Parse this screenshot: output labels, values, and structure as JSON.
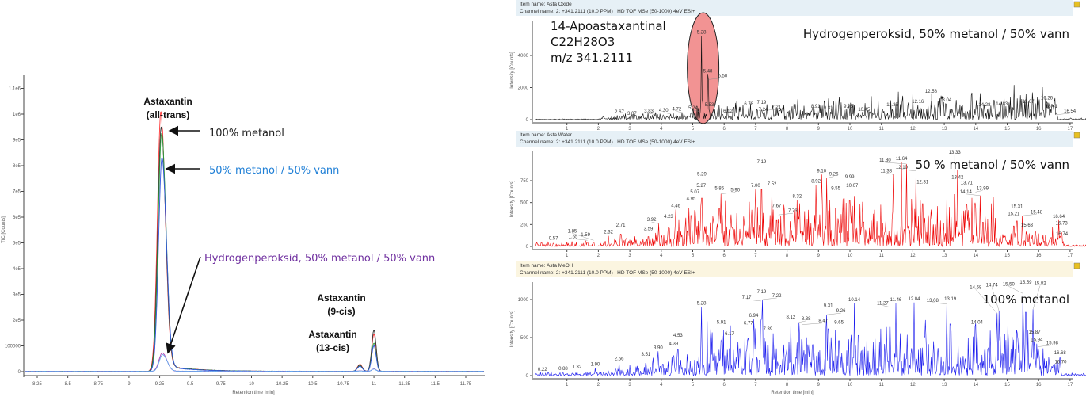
{
  "chart_data": [
    {
      "type": "line",
      "xlabel": "Retention time [min]",
      "ylabel": "TIC [Counts]",
      "xlim": [
        8.15,
        11.9
      ],
      "ylim": [
        0,
        1150000
      ],
      "xticks": [
        "8.25",
        "8.5",
        "8.75",
        "9",
        "9.25",
        "9.5",
        "9.75",
        "10",
        "10.25",
        "10.5",
        "10.75",
        "11",
        "11.25",
        "11.5",
        "11.75"
      ],
      "yticks": [
        {
          "v": 0,
          "label": "0"
        },
        {
          "v": 100000,
          "label": "100000"
        },
        {
          "v": 200000,
          "label": "2e5"
        },
        {
          "v": 300000,
          "label": "3e5"
        },
        {
          "v": 400000,
          "label": "4e5"
        },
        {
          "v": 500000,
          "label": "5e5"
        },
        {
          "v": 600000,
          "label": "6e5"
        },
        {
          "v": 700000,
          "label": "7e5"
        },
        {
          "v": 800000,
          "label": "8e5"
        },
        {
          "v": 900000,
          "label": "9e5"
        },
        {
          "v": 1000000,
          "label": "1e6"
        },
        {
          "v": 1100000,
          "label": "1.1e6"
        }
      ],
      "grid": false,
      "peaks": [
        {
          "label_line1": "Astaxantin",
          "label_line2": "(all-trans)",
          "rt": 9.26
        },
        {
          "label_line1": "Astaxantin",
          "label_line2": "(9-cis)",
          "rt": 10.88
        },
        {
          "label_line1": "Astaxantin",
          "label_line2": "(13-cis)",
          "rt": 11.0
        }
      ],
      "annotations": [
        {
          "text": "100% metanol",
          "color": "#222222"
        },
        {
          "text": "50% metanol / 50% vann",
          "color": "#1f7fd6"
        },
        {
          "text": "Hydrogenperoksid, 50% metanol / 50% vann",
          "color": "#7030a0"
        }
      ],
      "series": [
        {
          "color": "#ff3b3b",
          "peak_all_trans": 1010000,
          "peak_9_cis": 28000,
          "peak_13_cis": 145000
        },
        {
          "color": "#333333",
          "peak_all_trans": 950000,
          "peak_9_cis": 25000,
          "peak_13_cis": 160000
        },
        {
          "color": "#2e9e3e",
          "peak_all_trans": 925000,
          "peak_9_cis": 22000,
          "peak_13_cis": 110000
        },
        {
          "color": "#3355dd",
          "peak_all_trans": 830000,
          "peak_9_cis": 20000,
          "peak_13_cis": 100000
        },
        {
          "color": "#b040b0",
          "peak_all_trans": 72000,
          "peak_9_cis": 2000,
          "peak_13_cis": 10000
        },
        {
          "color": "#66aaee",
          "peak_all_trans": 65000,
          "peak_9_cis": 2000,
          "peak_13_cis": 9000
        }
      ]
    },
    {
      "type": "line",
      "item_name": "Item name: Asta Oxide",
      "channel_name": "Channel name: 2: +341.2111 (10.0 PPM) : HD TOF MSe (50-1000) 4eV ESI+",
      "ylabel": "Intensity [Counts]",
      "title": "Hydrogenperoksid, 50% metanol / 50% vann",
      "compound": [
        "14-Apoastaxantinal",
        "C22H28O3",
        "m/z 341.2111"
      ],
      "highlight_color": "#f08080",
      "color": "#111111",
      "xlim": [
        0,
        22
      ],
      "ylim": [
        0,
        5600
      ],
      "yticks": [
        0,
        2000,
        4000
      ],
      "peaks": [
        [
          2.67,
          250
        ],
        [
          3.07,
          150
        ],
        [
          3.83,
          300
        ],
        [
          4.3,
          350
        ],
        [
          4.72,
          420
        ],
        [
          5.24,
          500
        ],
        [
          5.28,
          5200
        ],
        [
          5.48,
          2800
        ],
        [
          5.5,
          2500
        ],
        [
          5.53,
          700
        ],
        [
          6.12,
          300
        ],
        [
          6.78,
          750
        ],
        [
          7.19,
          850
        ],
        [
          7.21,
          550
        ],
        [
          7.24,
          400
        ],
        [
          8.91,
          600
        ],
        [
          9.31,
          500
        ],
        [
          9.95,
          600
        ],
        [
          10.45,
          400
        ],
        [
          11.35,
          700
        ],
        [
          12.16,
          900
        ],
        [
          12.58,
          850
        ],
        [
          13.04,
          1000
        ],
        [
          14.28,
          700
        ],
        [
          14.83,
          750
        ],
        [
          15.67,
          900
        ],
        [
          16.26,
          1100
        ],
        [
          16.41,
          600
        ],
        [
          16.54,
          300
        ]
      ]
    },
    {
      "type": "line",
      "item_name": "Item name: Asta Water",
      "channel_name": "Channel name: 2: +341.2111 (10.0 PPM) : HD TOF MSe (50-1000) 4eV ESI+",
      "ylabel": "Intensity [Counts]",
      "title": "50 % metanol / 50% vann",
      "color": "#ee0000",
      "xlim": [
        0,
        22
      ],
      "ylim": [
        0,
        1000
      ],
      "yticks": [
        0,
        250,
        500,
        750
      ],
      "peaks": [
        [
          0.57,
          50
        ],
        [
          1.59,
          90
        ],
        [
          1.65,
          70
        ],
        [
          1.85,
          70
        ],
        [
          2.32,
          120
        ],
        [
          2.71,
          200
        ],
        [
          3.59,
          160
        ],
        [
          3.92,
          260
        ],
        [
          4.23,
          300
        ],
        [
          4.46,
          420
        ],
        [
          4.95,
          500
        ],
        [
          5.07,
          580
        ],
        [
          5.27,
          650
        ],
        [
          5.29,
          780
        ],
        [
          5.85,
          620
        ],
        [
          5.9,
          600
        ],
        [
          7.0,
          650
        ],
        [
          7.19,
          920
        ],
        [
          7.52,
          670
        ],
        [
          7.67,
          420
        ],
        [
          7.73,
          360
        ],
        [
          8.32,
          530
        ],
        [
          8.92,
          700
        ],
        [
          9.1,
          820
        ],
        [
          9.26,
          780
        ],
        [
          9.55,
          620
        ],
        [
          9.99,
          750
        ],
        [
          10.07,
          650
        ],
        [
          11.38,
          820
        ],
        [
          11.64,
          960
        ],
        [
          11.8,
          940
        ],
        [
          12.1,
          860
        ],
        [
          12.31,
          690
        ],
        [
          13.33,
          840
        ],
        [
          13.42,
          870
        ],
        [
          13.71,
          680
        ],
        [
          13.99,
          620
        ],
        [
          14.14,
          580
        ],
        [
          15.21,
          330
        ],
        [
          15.31,
          410
        ],
        [
          15.48,
          350
        ],
        [
          15.63,
          200
        ],
        [
          16.64,
          300
        ],
        [
          16.73,
          220
        ],
        [
          16.74,
          100
        ],
        [
          18.33,
          50
        ],
        [
          19.5,
          40
        ],
        [
          20.31,
          60
        ],
        [
          21.28,
          50
        ]
      ]
    },
    {
      "type": "line",
      "item_name": "Item name: Asta MeOH",
      "channel_name": "Channel name: 2: +341.2111 (10.0 PPM) : HD TOF MSe (50-1000) 4eV ESI+",
      "ylabel": "Intensity [Counts]",
      "xlabel": "Retention time [min]",
      "title": "100% metanol",
      "color": "#1a1aee",
      "xlim": [
        0,
        22
      ],
      "ylim": [
        0,
        1200
      ],
      "yticks": [
        0,
        500,
        1000
      ],
      "peaks": [
        [
          0.22,
          30
        ],
        [
          0.88,
          40
        ],
        [
          1.32,
          60
        ],
        [
          1.9,
          100
        ],
        [
          2.66,
          170
        ],
        [
          3.51,
          230
        ],
        [
          3.9,
          320
        ],
        [
          4.39,
          370
        ],
        [
          4.53,
          480
        ],
        [
          5.28,
          900
        ],
        [
          5.91,
          650
        ],
        [
          6.17,
          500
        ],
        [
          6.77,
          640
        ],
        [
          6.94,
          740
        ],
        [
          7.17,
          980
        ],
        [
          7.19,
          1050
        ],
        [
          7.22,
          1000
        ],
        [
          7.39,
          560
        ],
        [
          8.12,
          720
        ],
        [
          8.38,
          700
        ],
        [
          8.47,
          670
        ],
        [
          9.26,
          800
        ],
        [
          9.31,
          870
        ],
        [
          9.65,
          650
        ],
        [
          10.14,
          950
        ],
        [
          11.27,
          900
        ],
        [
          11.46,
          950
        ],
        [
          12.04,
          960
        ],
        [
          13.08,
          940
        ],
        [
          13.19,
          960
        ],
        [
          14.04,
          650
        ],
        [
          14.68,
          820
        ],
        [
          14.74,
          850
        ],
        [
          15.5,
          1080
        ],
        [
          15.59,
          1180
        ],
        [
          15.82,
          870
        ],
        [
          15.87,
          520
        ],
        [
          15.94,
          420
        ],
        [
          15.98,
          380
        ],
        [
          16.68,
          250
        ],
        [
          16.7,
          130
        ],
        [
          18.09,
          60
        ],
        [
          18.6,
          60
        ],
        [
          19.63,
          60
        ],
        [
          20.14,
          100
        ],
        [
          20.41,
          100
        ],
        [
          21.34,
          50
        ]
      ]
    }
  ],
  "right_xticks": [
    "1",
    "2",
    "3",
    "4",
    "5",
    "6",
    "7",
    "8",
    "9",
    "10",
    "11",
    "12",
    "13",
    "14",
    "15",
    "16",
    "17",
    "18",
    "19",
    "20",
    "21"
  ]
}
